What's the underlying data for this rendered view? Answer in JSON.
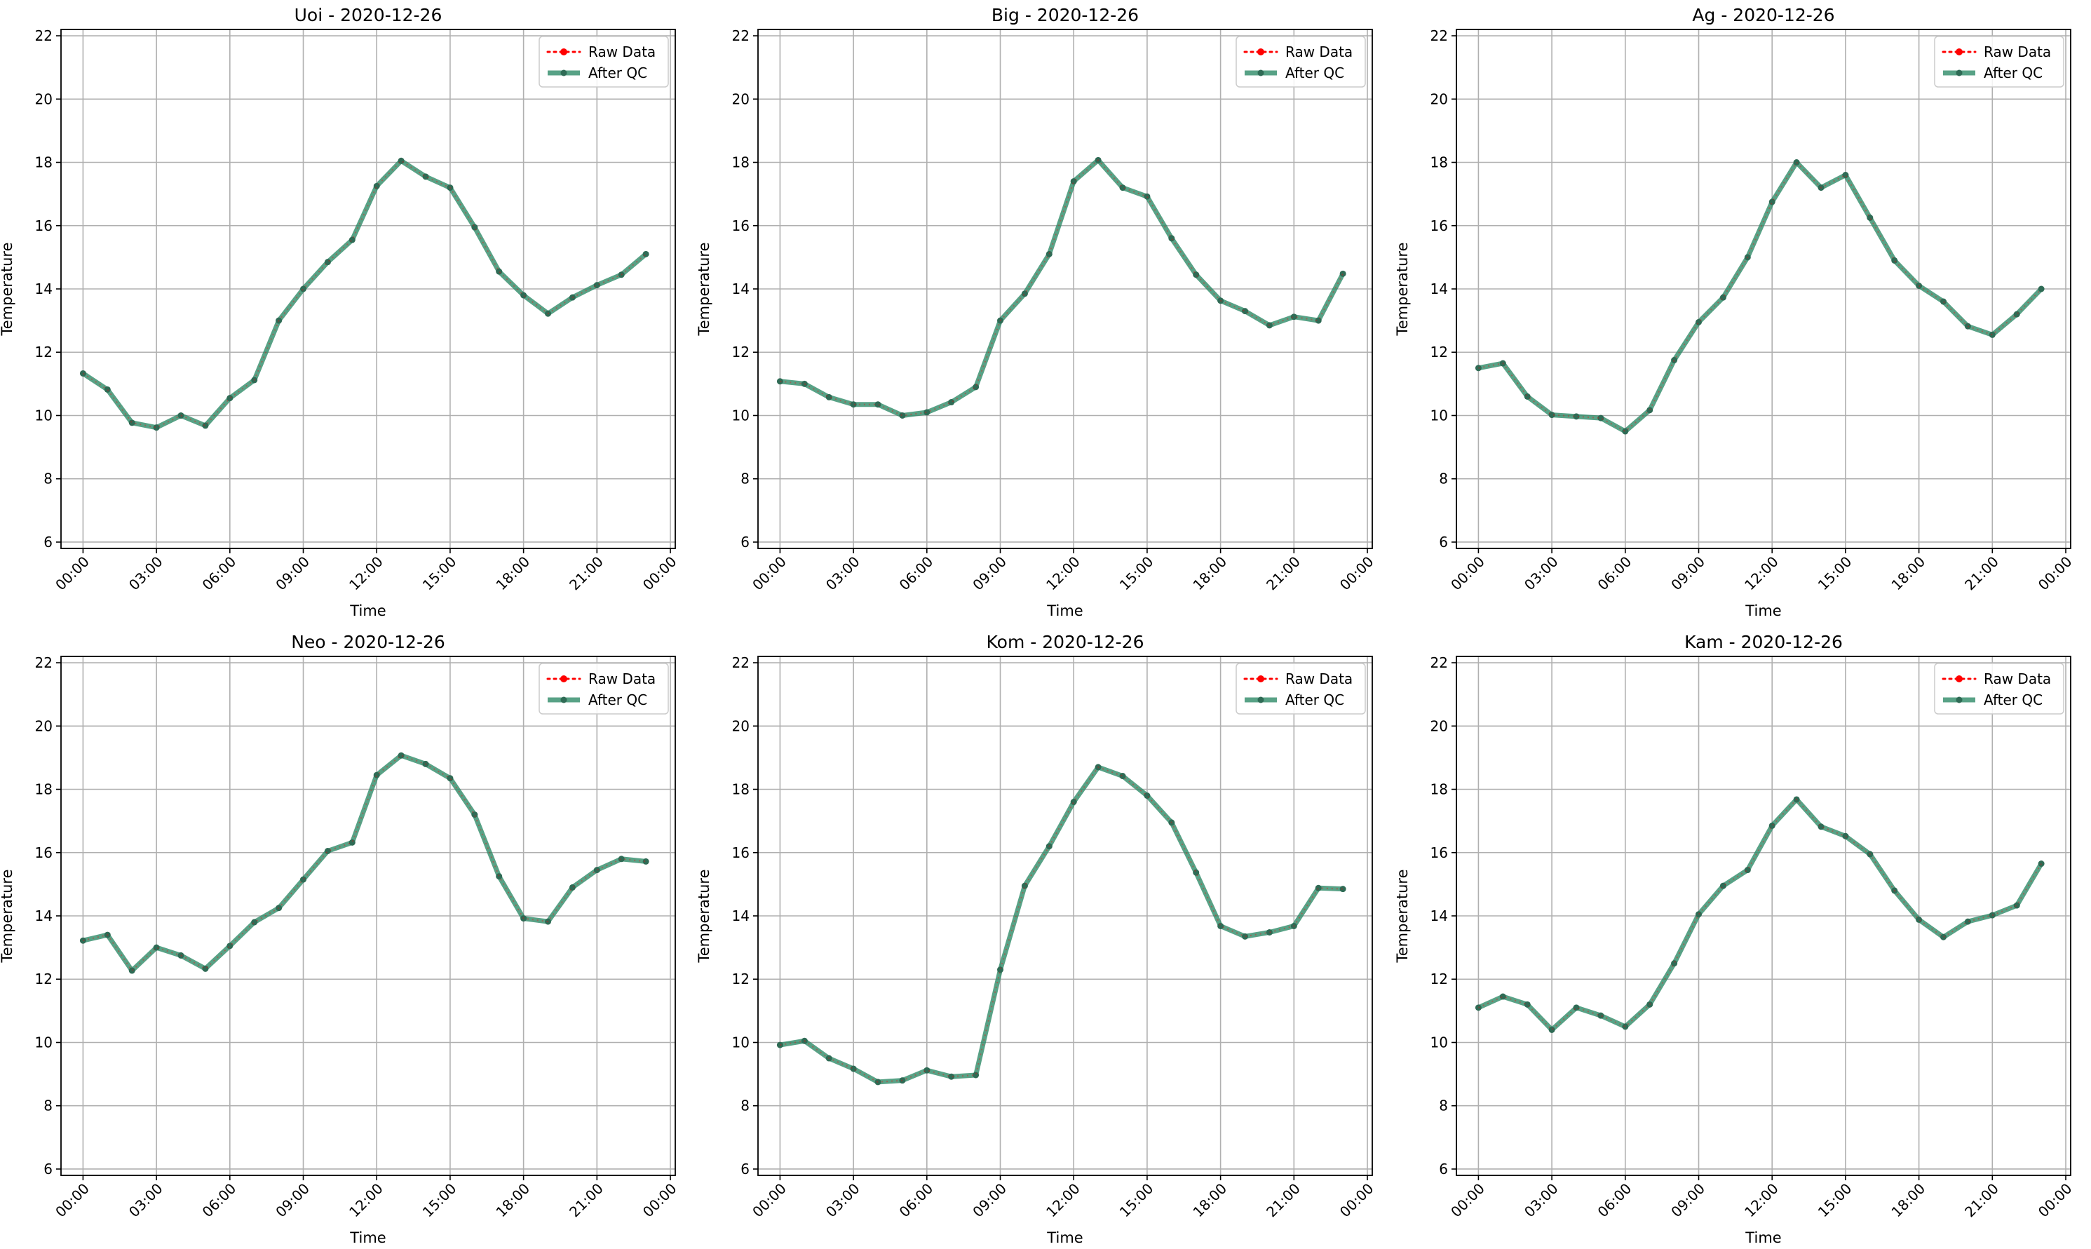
{
  "colors": {
    "raw": "#ff0000",
    "qc": "#2e8b68",
    "qc_marker": "#2f6b55",
    "grid": "#b0b0b0"
  },
  "legend": {
    "placement": "top-right",
    "raw_label": "Raw Data",
    "qc_label": "After QC"
  },
  "chart_data": [
    {
      "type": "line",
      "title": "Uoi - 2020-12-26",
      "xlabel": "Time",
      "ylabel": "Temperature",
      "ylim": [
        5.8,
        22.2
      ],
      "yticks": [
        6,
        8,
        10,
        12,
        14,
        16,
        18,
        20,
        22
      ],
      "xlim": [
        -0.9,
        24.2
      ],
      "xticks": [
        "00:00",
        "03:00",
        "06:00",
        "09:00",
        "12:00",
        "15:00",
        "18:00",
        "21:00",
        "00:00"
      ],
      "grid": true,
      "legend": "top-right",
      "x_hours": [
        0,
        1,
        2,
        3,
        4,
        5,
        6,
        7,
        8,
        9,
        10,
        11,
        12,
        13,
        14,
        15,
        16,
        17,
        18,
        19,
        20,
        21,
        22,
        23
      ],
      "series": [
        {
          "name": "Raw Data",
          "values": [
            11.33,
            10.82,
            9.77,
            9.62,
            10.0,
            9.68,
            10.55,
            11.12,
            13.0,
            14.0,
            14.85,
            15.55,
            17.25,
            18.05,
            17.55,
            17.2,
            15.95,
            14.55,
            13.8,
            13.22,
            13.73,
            14.12,
            14.45,
            15.1
          ]
        },
        {
          "name": "After QC",
          "values": [
            11.33,
            10.82,
            9.77,
            9.62,
            10.0,
            9.68,
            10.55,
            11.12,
            13.0,
            14.0,
            14.85,
            15.55,
            17.25,
            18.05,
            17.55,
            17.2,
            15.95,
            14.55,
            13.8,
            13.22,
            13.73,
            14.12,
            14.45,
            15.1
          ]
        }
      ]
    },
    {
      "type": "line",
      "title": "Big - 2020-12-26",
      "xlabel": "Time",
      "ylabel": "Temperature",
      "ylim": [
        5.8,
        22.2
      ],
      "yticks": [
        6,
        8,
        10,
        12,
        14,
        16,
        18,
        20,
        22
      ],
      "xlim": [
        -0.9,
        24.2
      ],
      "xticks": [
        "00:00",
        "03:00",
        "06:00",
        "09:00",
        "12:00",
        "15:00",
        "18:00",
        "21:00",
        "00:00"
      ],
      "grid": true,
      "legend": "top-right",
      "x_hours": [
        0,
        1,
        2,
        3,
        4,
        5,
        6,
        7,
        8,
        9,
        10,
        11,
        12,
        13,
        14,
        15,
        16,
        17,
        18,
        19,
        20,
        21,
        22,
        23
      ],
      "series": [
        {
          "name": "Raw Data",
          "values": [
            11.08,
            11.0,
            10.58,
            10.35,
            10.35,
            10.0,
            10.1,
            10.42,
            10.9,
            13.0,
            13.85,
            15.1,
            17.4,
            18.07,
            17.2,
            16.92,
            15.6,
            14.45,
            13.63,
            13.3,
            12.85,
            13.12,
            13.0,
            14.48
          ]
        },
        {
          "name": "After QC",
          "values": [
            11.08,
            11.0,
            10.58,
            10.35,
            10.35,
            10.0,
            10.1,
            10.42,
            10.9,
            13.0,
            13.85,
            15.1,
            17.4,
            18.07,
            17.2,
            16.92,
            15.6,
            14.45,
            13.63,
            13.3,
            12.85,
            13.12,
            13.0,
            14.48
          ]
        }
      ]
    },
    {
      "type": "line",
      "title": "Ag - 2020-12-26",
      "xlabel": "Time",
      "ylabel": "Temperature",
      "ylim": [
        5.8,
        22.2
      ],
      "yticks": [
        6,
        8,
        10,
        12,
        14,
        16,
        18,
        20,
        22
      ],
      "xlim": [
        -0.9,
        24.2
      ],
      "xticks": [
        "00:00",
        "03:00",
        "06:00",
        "09:00",
        "12:00",
        "15:00",
        "18:00",
        "21:00",
        "00:00"
      ],
      "grid": true,
      "legend": "top-right",
      "x_hours": [
        0,
        1,
        2,
        3,
        4,
        5,
        6,
        7,
        8,
        9,
        10,
        11,
        12,
        13,
        14,
        15,
        16,
        17,
        18,
        19,
        20,
        21,
        22,
        23
      ],
      "series": [
        {
          "name": "Raw Data",
          "values": [
            11.5,
            11.65,
            10.6,
            10.02,
            9.97,
            9.92,
            9.5,
            10.17,
            11.75,
            12.95,
            13.73,
            15.0,
            16.75,
            18.0,
            17.2,
            17.6,
            16.25,
            14.9,
            14.1,
            13.6,
            12.82,
            12.55,
            13.2,
            14.0
          ]
        },
        {
          "name": "After QC",
          "values": [
            11.5,
            11.65,
            10.6,
            10.02,
            9.97,
            9.92,
            9.5,
            10.17,
            11.75,
            12.95,
            13.73,
            15.0,
            16.75,
            18.0,
            17.2,
            17.6,
            16.25,
            14.9,
            14.1,
            13.6,
            12.82,
            12.55,
            13.2,
            14.0
          ]
        }
      ]
    },
    {
      "type": "line",
      "title": "Neo - 2020-12-26",
      "xlabel": "Time",
      "ylabel": "Temperature",
      "ylim": [
        5.8,
        22.2
      ],
      "yticks": [
        6,
        8,
        10,
        12,
        14,
        16,
        18,
        20,
        22
      ],
      "xlim": [
        -0.9,
        24.2
      ],
      "xticks": [
        "00:00",
        "03:00",
        "06:00",
        "09:00",
        "12:00",
        "15:00",
        "18:00",
        "21:00",
        "00:00"
      ],
      "grid": true,
      "legend": "top-right",
      "x_hours": [
        0,
        1,
        2,
        3,
        4,
        5,
        6,
        7,
        8,
        9,
        10,
        11,
        12,
        13,
        14,
        15,
        16,
        17,
        18,
        19,
        20,
        21,
        22,
        23
      ],
      "series": [
        {
          "name": "Raw Data",
          "values": [
            13.22,
            13.4,
            12.27,
            13.0,
            12.75,
            12.33,
            13.05,
            13.8,
            14.25,
            15.15,
            16.05,
            16.32,
            18.45,
            19.07,
            18.8,
            18.35,
            17.2,
            15.25,
            13.92,
            13.82,
            14.9,
            15.45,
            15.8,
            15.72
          ]
        },
        {
          "name": "After QC",
          "values": [
            13.22,
            13.4,
            12.27,
            13.0,
            12.75,
            12.33,
            13.05,
            13.8,
            14.25,
            15.15,
            16.05,
            16.32,
            18.45,
            19.07,
            18.8,
            18.35,
            17.2,
            15.25,
            13.92,
            13.82,
            14.9,
            15.45,
            15.8,
            15.72
          ]
        }
      ]
    },
    {
      "type": "line",
      "title": "Kom - 2020-12-26",
      "xlabel": "Time",
      "ylabel": "Temperature",
      "ylim": [
        5.8,
        22.2
      ],
      "yticks": [
        6,
        8,
        10,
        12,
        14,
        16,
        18,
        20,
        22
      ],
      "xlim": [
        -0.9,
        24.2
      ],
      "xticks": [
        "00:00",
        "03:00",
        "06:00",
        "09:00",
        "12:00",
        "15:00",
        "18:00",
        "21:00",
        "00:00"
      ],
      "grid": true,
      "legend": "top-right",
      "x_hours": [
        0,
        1,
        2,
        3,
        4,
        5,
        6,
        7,
        8,
        9,
        10,
        11,
        12,
        13,
        14,
        15,
        16,
        17,
        18,
        19,
        20,
        21,
        22,
        23
      ],
      "series": [
        {
          "name": "Raw Data",
          "values": [
            9.92,
            10.05,
            9.5,
            9.17,
            8.75,
            8.8,
            9.12,
            8.92,
            8.97,
            12.3,
            14.95,
            16.2,
            17.6,
            18.7,
            18.42,
            17.8,
            16.95,
            15.37,
            13.68,
            13.35,
            13.48,
            13.68,
            14.88,
            14.85
          ]
        },
        {
          "name": "After QC",
          "values": [
            9.92,
            10.05,
            9.5,
            9.17,
            8.75,
            8.8,
            9.12,
            8.92,
            8.97,
            12.3,
            14.95,
            16.2,
            17.6,
            18.7,
            18.42,
            17.8,
            16.95,
            15.37,
            13.68,
            13.35,
            13.48,
            13.68,
            14.88,
            14.85
          ]
        }
      ]
    },
    {
      "type": "line",
      "title": "Kam - 2020-12-26",
      "xlabel": "Time",
      "ylabel": "Temperature",
      "ylim": [
        5.8,
        22.2
      ],
      "yticks": [
        6,
        8,
        10,
        12,
        14,
        16,
        18,
        20,
        22
      ],
      "xlim": [
        -0.9,
        24.2
      ],
      "xticks": [
        "00:00",
        "03:00",
        "06:00",
        "09:00",
        "12:00",
        "15:00",
        "18:00",
        "21:00",
        "00:00"
      ],
      "grid": true,
      "legend": "top-right",
      "x_hours": [
        0,
        1,
        2,
        3,
        4,
        5,
        6,
        7,
        8,
        9,
        10,
        11,
        12,
        13,
        14,
        15,
        16,
        17,
        18,
        19,
        20,
        21,
        22,
        23
      ],
      "series": [
        {
          "name": "Raw Data",
          "values": [
            11.1,
            11.45,
            11.2,
            10.4,
            11.1,
            10.85,
            10.5,
            11.2,
            12.5,
            14.05,
            14.95,
            15.45,
            16.85,
            17.68,
            16.82,
            16.52,
            15.95,
            14.8,
            13.88,
            13.33,
            13.82,
            14.02,
            14.33,
            15.65
          ]
        },
        {
          "name": "After QC",
          "values": [
            11.1,
            11.45,
            11.2,
            10.4,
            11.1,
            10.85,
            10.5,
            11.2,
            12.5,
            14.05,
            14.95,
            15.45,
            16.85,
            17.68,
            16.82,
            16.52,
            15.95,
            14.8,
            13.88,
            13.33,
            13.82,
            14.02,
            14.33,
            15.65
          ]
        }
      ]
    }
  ]
}
